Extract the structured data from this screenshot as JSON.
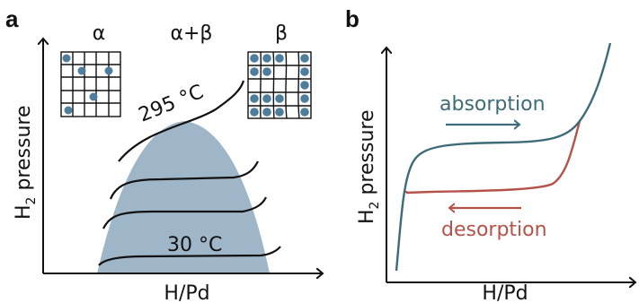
{
  "panel_a": {
    "letter": "a",
    "phase_alpha": "α",
    "phase_alpha_beta": "α+β",
    "phase_beta": "β",
    "temp_high": "295 °C",
    "temp_low": "30 °C",
    "ylabel_main": "H",
    "ylabel_sub": "2",
    "ylabel_rest": " pressure",
    "xlabel": "H/Pd",
    "colors": {
      "dome": "#9fb5c8",
      "dot": "#4e7e9c",
      "line": "#111111"
    }
  },
  "panel_b": {
    "letter": "b",
    "absorption_label": "absorption",
    "desorption_label": "desorption",
    "ylabel_main": "H",
    "ylabel_sub": "2",
    "ylabel_rest": " pressure",
    "xlabel": "H/Pd",
    "colors": {
      "absorption": "#3d6b79",
      "desorption": "#b5524a"
    }
  }
}
